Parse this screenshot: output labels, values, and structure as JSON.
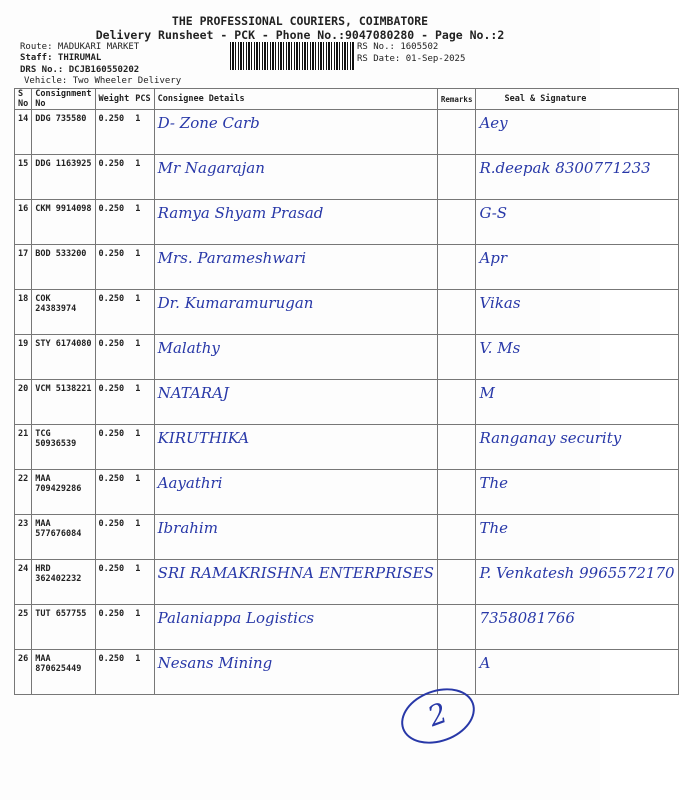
{
  "header": {
    "title": "THE PROFESSIONAL COURIERS, COIMBATORE",
    "subtitle": "Delivery Runsheet - PCK - Phone No.:9047080280 - Page No.:2",
    "route": "Route: MADUKARI MARKET",
    "staff": "Staff: THIRUMAL",
    "drs": "DRS No.: DCJB160550202",
    "vehicle": "Vehicle: Two Wheeler Delivery",
    "rs_no": "RS No.: 1605502",
    "rs_date": "RS Date: 01-Sep-2025"
  },
  "columns": [
    "S No",
    "Consignment No",
    "Weight",
    "PCS",
    "Consignee Details",
    "Remarks",
    "Seal & Signature"
  ],
  "rows": [
    {
      "sno": "14",
      "cn": "DDG 735580",
      "wt": "0.250",
      "pcs": "1",
      "consignee": "D- Zone Carb",
      "sig": "Aey"
    },
    {
      "sno": "15",
      "cn": "DDG 1163925",
      "wt": "0.250",
      "pcs": "1",
      "consignee": "Mr Nagarajan",
      "sig": "R.deepak 8300771233"
    },
    {
      "sno": "16",
      "cn": "CKM 9914098",
      "wt": "0.250",
      "pcs": "1",
      "consignee": "Ramya Shyam Prasad",
      "sig": "G-S"
    },
    {
      "sno": "17",
      "cn": "BOD 533200",
      "wt": "0.250",
      "pcs": "1",
      "consignee": "Mrs. Parameshwari",
      "sig": "Apr"
    },
    {
      "sno": "18",
      "cn": "COK 24383974",
      "wt": "0.250",
      "pcs": "1",
      "consignee": "Dr. Kumaramurugan",
      "sig": "Vikas"
    },
    {
      "sno": "19",
      "cn": "STY 6174080",
      "wt": "0.250",
      "pcs": "1",
      "consignee": "Malathy",
      "sig": "V. Ms"
    },
    {
      "sno": "20",
      "cn": "VCM 5138221",
      "wt": "0.250",
      "pcs": "1",
      "consignee": "NATARAJ",
      "sig": "M"
    },
    {
      "sno": "21",
      "cn": "TCG 50936539",
      "wt": "0.250",
      "pcs": "1",
      "consignee": "KIRUTHIKA",
      "sig": "Ranganay security"
    },
    {
      "sno": "22",
      "cn": "MAA 709429286",
      "wt": "0.250",
      "pcs": "1",
      "consignee": "Aayathri",
      "sig": "The"
    },
    {
      "sno": "23",
      "cn": "MAA 577676084",
      "wt": "0.250",
      "pcs": "1",
      "consignee": "Ibrahim",
      "sig": "The"
    },
    {
      "sno": "24",
      "cn": "HRD 362402232",
      "wt": "0.250",
      "pcs": "1",
      "consignee": "SRI RAMAKRISHNA ENTERPRISES",
      "sig": "P. Venkatesh 9965572170"
    },
    {
      "sno": "25",
      "cn": "TUT 657755",
      "wt": "0.250",
      "pcs": "1",
      "consignee": "Palaniappa Logistics",
      "sig": "7358081766"
    },
    {
      "sno": "26",
      "cn": "MAA 870625449",
      "wt": "0.250",
      "pcs": "1",
      "consignee": "Nesans Mining",
      "sig": "A"
    }
  ],
  "page_mark": "2"
}
